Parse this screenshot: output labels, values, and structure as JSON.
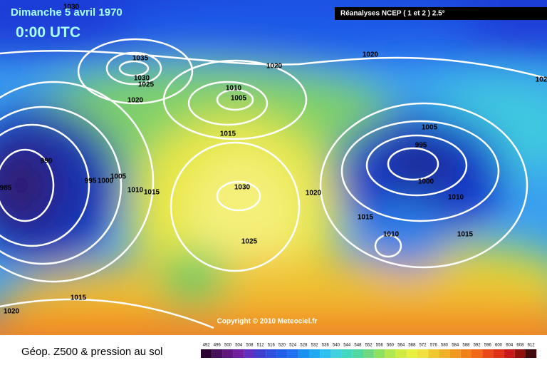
{
  "header": {
    "title": "Dimanche 5 avril 1970",
    "time": "0:00 UTC",
    "source": "Réanalyses NCEP ( 1 et 2 ) 2.5°"
  },
  "map": {
    "isobar_labels": [
      1030,
      1035,
      1030,
      1025,
      1020,
      1010,
      1005,
      1020,
      1020,
      1015,
      990,
      995,
      1000,
      1005,
      1010,
      1015,
      985,
      1030,
      1025,
      1020,
      1015,
      1010,
      1015,
      1010,
      1000,
      995,
      1005,
      102,
      1015,
      1020
    ],
    "copyright": "Copyright © 2010 Meteociel.fr"
  },
  "legend": {
    "title": "Géop. Z500 & pression au sol",
    "scale": [
      492,
      496,
      500,
      504,
      508,
      512,
      516,
      520,
      524,
      528,
      532,
      536,
      540,
      544,
      548,
      552,
      556,
      560,
      564,
      568,
      572,
      576,
      580,
      584,
      588,
      592,
      596,
      600,
      604,
      608,
      612
    ]
  }
}
